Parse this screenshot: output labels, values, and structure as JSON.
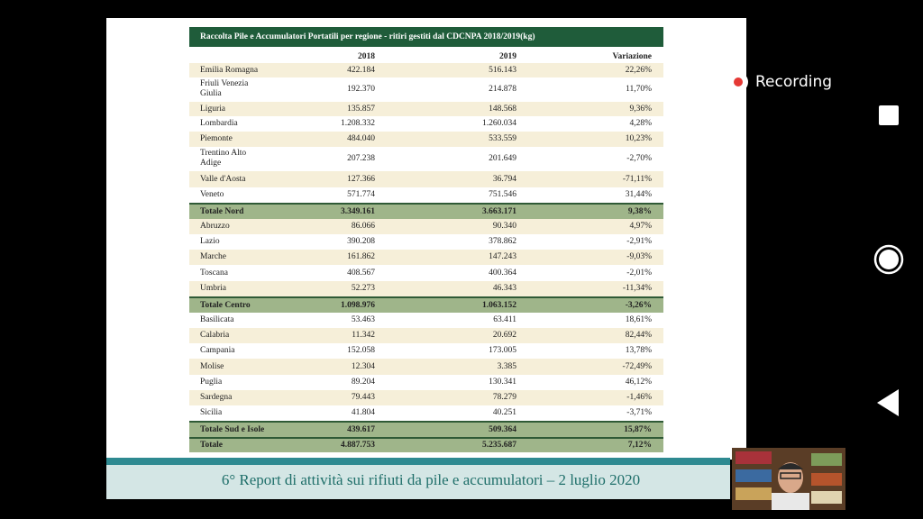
{
  "table": {
    "title": "Raccolta Pile e Accumulatori Portatili per regione - ritiri gestiti dal CDCNPA 2018/2019(kg)",
    "columns": [
      "2018",
      "2019",
      "Variazione"
    ],
    "rows": [
      [
        "Emilia Romagna",
        "422.184",
        "516.143",
        "22,26%"
      ],
      [
        "Friuli Venezia Giulia",
        "192.370",
        "214.878",
        "11,70%"
      ],
      [
        "Liguria",
        "135.857",
        "148.568",
        "9,36%"
      ],
      [
        "Lombardia",
        "1.208.332",
        "1.260.034",
        "4,28%"
      ],
      [
        "Piemonte",
        "484.040",
        "533.559",
        "10,23%"
      ],
      [
        "Trentino Alto Adige",
        "207.238",
        "201.649",
        "-2,70%"
      ],
      [
        "Valle d'Aosta",
        "127.366",
        "36.794",
        "-71,11%"
      ],
      [
        "Veneto",
        "571.774",
        "751.546",
        "31,44%"
      ],
      [
        "Totale Nord",
        "3.349.161",
        "3.663.171",
        "9,38%"
      ],
      [
        "Abruzzo",
        "86.066",
        "90.340",
        "4,97%"
      ],
      [
        "Lazio",
        "390.208",
        "378.862",
        "-2,91%"
      ],
      [
        "Marche",
        "161.862",
        "147.243",
        "-9,03%"
      ],
      [
        "Toscana",
        "408.567",
        "400.364",
        "-2,01%"
      ],
      [
        "Umbria",
        "52.273",
        "46.343",
        "-11,34%"
      ],
      [
        "Totale Centro",
        "1.098.976",
        "1.063.152",
        "-3,26%"
      ],
      [
        "Basilicata",
        "53.463",
        "63.411",
        "18,61%"
      ],
      [
        "Calabria",
        "11.342",
        "20.692",
        "82,44%"
      ],
      [
        "Campania",
        "152.058",
        "173.005",
        "13,78%"
      ],
      [
        "Molise",
        "12.304",
        "3.385",
        "-72,49%"
      ],
      [
        "Puglia",
        "89.204",
        "130.341",
        "46,12%"
      ],
      [
        "Sardegna",
        "79.443",
        "78.279",
        "-1,46%"
      ],
      [
        "Sicilia",
        "41.804",
        "40.251",
        "-3,71%"
      ],
      [
        "Totale Sud e Isole",
        "439.617",
        "509.364",
        "15,87%"
      ],
      [
        "Totale",
        "4.887.753",
        "5.235.687",
        "7,12%"
      ]
    ]
  },
  "footer": "6° Report di attività sui rifiuti da pile e accumulatori – 2 luglio 2020",
  "recording": "Recording"
}
